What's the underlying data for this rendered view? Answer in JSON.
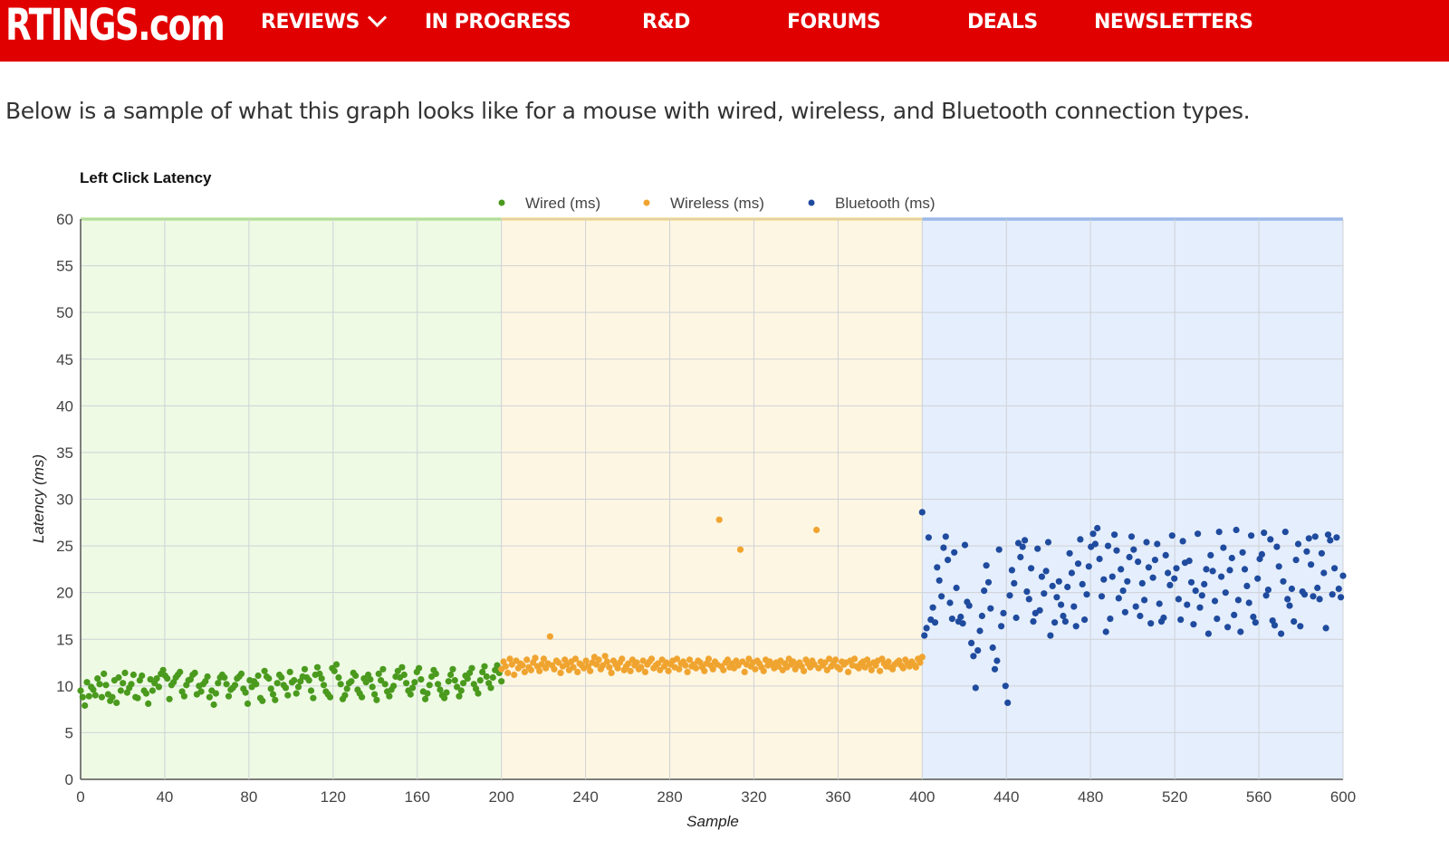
{
  "header": {
    "logo": "RTINGS.com",
    "nav": [
      {
        "label": "REVIEWS",
        "dropdown": true
      },
      {
        "label": "IN PROGRESS"
      },
      {
        "label": "R&D"
      },
      {
        "label": "FORUMS"
      },
      {
        "label": "DEALS"
      },
      {
        "label": "NEWSLETTERS"
      }
    ],
    "bg_color": "#e10000"
  },
  "intro_text": "Below is a sample of what this graph looks like for a mouse with wired, wireless, and Bluetooth connection types.",
  "chart_data": {
    "type": "scatter",
    "title": "Left Click Latency",
    "xlabel": "Sample",
    "ylabel": "Latency (ms)",
    "xlim": [
      0,
      600
    ],
    "ylim": [
      0,
      60
    ],
    "xticks": [
      0,
      40,
      80,
      120,
      160,
      200,
      240,
      280,
      320,
      360,
      400,
      440,
      480,
      520,
      560,
      600
    ],
    "yticks": [
      0,
      5,
      10,
      15,
      20,
      25,
      30,
      35,
      40,
      45,
      50,
      55,
      60
    ],
    "grid": true,
    "legend_position": "top",
    "regions": [
      {
        "from": 0,
        "to": 200,
        "fill": "#eefae4",
        "line": "#9be26a"
      },
      {
        "from": 200,
        "to": 400,
        "fill": "#fdf6e3",
        "line": "#f4d36a"
      },
      {
        "from": 400,
        "to": 600,
        "fill": "#e5eefc",
        "line": "#6d9ef0"
      }
    ],
    "series": [
      {
        "name": "Wired (ms)",
        "color": "#4a9a1e",
        "x_range": [
          0,
          200
        ],
        "typical_range": [
          8,
          12
        ],
        "values": [
          9.5,
          8.8,
          7.9,
          10.4,
          8.9,
          9.9,
          9.6,
          9.0,
          10.8,
          10.2,
          8.8,
          11.3,
          10.1,
          9.1,
          8.4,
          8.8,
          10.6,
          8.2,
          10.9,
          9.5,
          10.3,
          11.4,
          9.3,
          9.8,
          10.2,
          11.2,
          8.8,
          8.7,
          10.6,
          11.1,
          9.5,
          9.2,
          8.1,
          10.7,
          9.5,
          10.3,
          10.8,
          9.9,
          11.3,
          11.7,
          11.1,
          10.8,
          8.6,
          10.1,
          10.4,
          10.9,
          11.2,
          11.5,
          9.4,
          8.9,
          10.1,
          10.6,
          10.7,
          11.2,
          11.4,
          9.1,
          10.0,
          9.4,
          10.2,
          10.5,
          11.0,
          8.8,
          9.5,
          8.0,
          9.2,
          10.3,
          10.9,
          11.2,
          10.9,
          10.2,
          8.9,
          9.6,
          9.8,
          10.1,
          10.8,
          11.0,
          11.3,
          9.7,
          9.3,
          8.1,
          10.6,
          9.9,
          10.5,
          10.2,
          11.1,
          8.7,
          8.4,
          11.6,
          11.0,
          10.8,
          9.7,
          9.1,
          8.5,
          10.3,
          11.2,
          10.9,
          10.1,
          9.8,
          9.0,
          11.5,
          10.4,
          10.6,
          9.2,
          9.9,
          10.5,
          11.0,
          11.8,
          10.9,
          10.6,
          9.5,
          8.7,
          11.2,
          12.0,
          11.3,
          10.8,
          10.1,
          9.4,
          9.1,
          8.8,
          11.9,
          11.6,
          12.3,
          10.9,
          10.2,
          8.6,
          9.0,
          9.7,
          10.3,
          10.5,
          11.4,
          11.1,
          9.6,
          9.2,
          8.8,
          10.8,
          10.4,
          11.2,
          10.7,
          9.9,
          9.1,
          8.5,
          11.3,
          10.6,
          11.8,
          10.2,
          9.4,
          8.9,
          9.6,
          10.0,
          11.0,
          11.6,
          10.9,
          12.0,
          11.2,
          10.3,
          9.5,
          9.1,
          9.8,
          10.4,
          11.5,
          11.9,
          10.7,
          9.4,
          8.6,
          9.2,
          10.1,
          11.0,
          11.7,
          11.3,
          10.2,
          9.6,
          9.0,
          8.7,
          9.3,
          10.5,
          11.2,
          11.8,
          10.6,
          9.9,
          8.9,
          9.5,
          10.3,
          11.1,
          10.8,
          11.4,
          11.9,
          10.2,
          9.7,
          9.2,
          10.6,
          11.5,
          12.1,
          11.0,
          10.3,
          9.8,
          10.9,
          11.7,
          12.2,
          11.4,
          10.5
        ]
      },
      {
        "name": "Wireless (ms)",
        "color": "#f0a430",
        "x_range": [
          200,
          400
        ],
        "typical_range": [
          11,
          13
        ],
        "values": [
          11.8,
          12.6,
          12.1,
          11.4,
          12.9,
          12.3,
          11.2,
          12.7,
          11.9,
          12.4,
          12.2,
          11.5,
          12.8,
          12.0,
          11.7,
          12.5,
          13.0,
          12.1,
          11.6,
          12.3,
          12.9,
          11.9,
          12.4,
          15.3,
          12.2,
          11.8,
          12.7,
          12.5,
          11.4,
          12.1,
          12.8,
          12.3,
          11.7,
          12.6,
          12.0,
          12.9,
          11.5,
          12.4,
          12.2,
          11.9,
          12.7,
          12.1,
          11.6,
          12.5,
          13.1,
          12.3,
          12.8,
          11.8,
          12.2,
          13.2,
          12.6,
          12.0,
          11.4,
          12.7,
          12.3,
          11.9,
          12.5,
          12.9,
          11.7,
          12.1,
          12.4,
          11.6,
          12.8,
          12.2,
          12.5,
          11.8,
          12.0,
          12.7,
          11.5,
          12.3,
          12.6,
          12.9,
          11.9,
          12.2,
          12.4,
          11.7,
          12.8,
          12.1,
          12.5,
          11.6,
          12.3,
          12.7,
          12.0,
          12.9,
          11.8,
          12.4,
          12.6,
          12.2,
          11.5,
          12.8,
          12.1,
          12.3,
          11.9,
          12.7,
          12.5,
          12.0,
          11.6,
          12.4,
          12.9,
          12.2,
          11.8,
          12.6,
          12.3,
          27.8,
          12.1,
          11.7,
          12.5,
          12.8,
          12.0,
          12.4,
          11.9,
          12.7,
          12.2,
          24.6,
          12.6,
          11.5,
          12.3,
          12.9,
          12.1,
          12.5,
          11.8,
          12.7,
          12.4,
          12.0,
          11.6,
          12.8,
          12.2,
          12.6,
          12.3,
          11.9,
          12.5,
          12.1,
          12.7,
          11.7,
          12.4,
          12.0,
          12.9,
          12.3,
          12.6,
          11.8,
          12.2,
          12.5,
          12.1,
          11.6,
          12.8,
          12.4,
          12.0,
          12.7,
          12.3,
          26.7,
          11.9,
          12.6,
          12.2,
          12.5,
          11.7,
          12.9,
          12.1,
          12.4,
          12.8,
          12.0,
          11.8,
          12.6,
          12.3,
          12.5,
          11.5,
          12.7,
          12.2,
          12.9,
          12.1,
          11.9,
          12.4,
          12.6,
          12.0,
          12.8,
          12.3,
          11.7,
          12.5,
          12.2,
          12.7,
          11.6,
          12.9,
          12.4,
          12.1,
          12.6,
          12.0,
          11.8,
          12.3,
          12.5,
          12.7,
          12.2,
          11.9,
          12.8,
          12.4,
          12.1,
          12.6,
          12.3,
          12.0,
          12.9,
          12.5,
          13.1
        ]
      },
      {
        "name": "Bluetooth (ms)",
        "color": "#1f4b9e",
        "x_range": [
          400,
          600
        ],
        "typical_range": [
          15,
          27
        ],
        "values": [
          28.6,
          15.4,
          16.2,
          25.9,
          17.1,
          18.4,
          16.8,
          22.7,
          21.3,
          19.6,
          24.8,
          26.0,
          23.5,
          18.9,
          17.2,
          24.3,
          20.5,
          16.9,
          17.4,
          16.7,
          25.1,
          19.0,
          18.6,
          14.6,
          13.2,
          9.8,
          13.8,
          15.9,
          17.5,
          20.2,
          22.9,
          21.1,
          18.3,
          14.1,
          11.8,
          12.7,
          24.6,
          16.4,
          17.8,
          10.0,
          8.2,
          19.7,
          22.4,
          21.0,
          17.3,
          25.3,
          23.8,
          24.9,
          25.6,
          20.1,
          19.3,
          22.6,
          16.9,
          17.8,
          24.7,
          18.1,
          21.7,
          19.9,
          22.3,
          25.4,
          15.4,
          20.7,
          16.8,
          19.5,
          21.2,
          18.7,
          17.5,
          16.9,
          20.6,
          24.2,
          22.1,
          18.5,
          16.4,
          23.1,
          25.7,
          20.9,
          17.1,
          19.8,
          22.8,
          24.9,
          26.3,
          25.2,
          26.9,
          23.6,
          19.6,
          21.4,
          15.8,
          25.0,
          17.2,
          21.7,
          26.2,
          24.5,
          19.4,
          22.5,
          20.2,
          17.9,
          21.2,
          23.8,
          26.0,
          24.6,
          18.5,
          23.3,
          17.5,
          21.0,
          19.2,
          25.4,
          22.7,
          16.7,
          21.6,
          23.5,
          25.2,
          18.8,
          16.9,
          17.3,
          24.0,
          22.1,
          20.8,
          26.1,
          21.5,
          22.6,
          19.3,
          17.1,
          25.5,
          23.2,
          18.7,
          23.4,
          21.1,
          16.6,
          20.2,
          26.3,
          18.4,
          19.7,
          20.9,
          22.5,
          15.6,
          24.0,
          22.3,
          19.1,
          17.2,
          26.5,
          21.7,
          24.8,
          20.0,
          16.3,
          22.4,
          23.7,
          17.6,
          26.7,
          19.2,
          15.8,
          24.3,
          22.5,
          20.7,
          18.9,
          26.1,
          17.4,
          16.8,
          21.5,
          23.6,
          24.1,
          26.4,
          19.7,
          20.3,
          25.7,
          17.0,
          16.5,
          24.9,
          22.8,
          15.6,
          21.2,
          26.5,
          19.3,
          18.6,
          20.4,
          16.9,
          23.5,
          25.2,
          16.4,
          20.1,
          19.8,
          24.4,
          25.8,
          23.0,
          19.6,
          26.0,
          20.5,
          19.3,
          24.2,
          22.1,
          16.2,
          26.2,
          25.6,
          19.8,
          22.6,
          25.9,
          20.4,
          19.5,
          21.8
        ]
      }
    ]
  }
}
